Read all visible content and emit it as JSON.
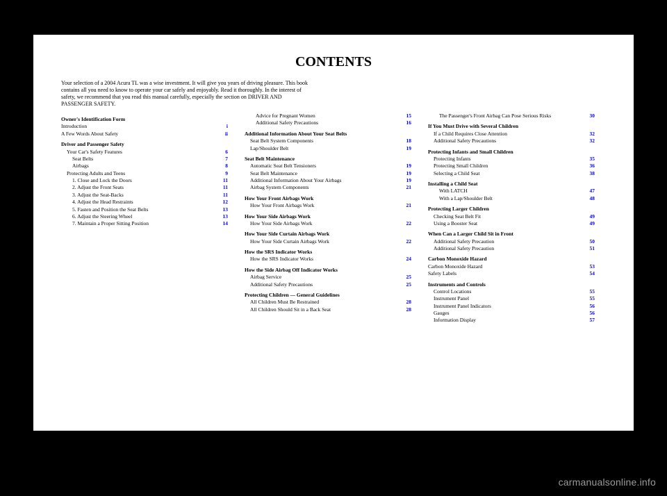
{
  "title": "CONTENTS",
  "intro": "Your selection of a 2004 Acura TL was a wise investment. It will give you years of driving pleasure. This book contains all you need to know to operate your car safely and enjoyably. Read it thoroughly. In the interest of safety, we recommend that you read this manual carefully, especially the section on DRIVER AND PASSENGER SAFETY.",
  "watermark": "carmanualsonline.info",
  "columns": [
    {
      "sections": [
        {
          "heading": "Owner's Identification Form",
          "items": [
            {
              "label": "Introduction",
              "page": "i",
              "indent": 0
            },
            {
              "label": "A Few Words About Safety",
              "page": "ii",
              "indent": 0
            }
          ]
        },
        {
          "heading": "Driver and Passenger Safety",
          "items": [
            {
              "label": "Your Car's Safety Features",
              "page": "6",
              "indent": 1
            },
            {
              "label": "Seat Belts",
              "page": "7",
              "indent": 2
            },
            {
              "label": "Airbags",
              "page": "8",
              "indent": 2
            },
            {
              "label": "Protecting Adults and Teens",
              "page": "9",
              "indent": 1
            },
            {
              "label": "1. Close and Lock the Doors",
              "page": "11",
              "indent": 2
            },
            {
              "label": "2. Adjust the Front Seats",
              "page": "11",
              "indent": 2
            },
            {
              "label": "3. Adjust the Seat-Backs",
              "page": "11",
              "indent": 2
            },
            {
              "label": "4. Adjust the Head Restraints",
              "page": "12",
              "indent": 2
            },
            {
              "label": "5. Fasten and Position the Seat Belts",
              "page": "13",
              "indent": 2
            },
            {
              "label": "6. Adjust the Steering Wheel",
              "page": "13",
              "indent": 2
            },
            {
              "label": "7. Maintain a Proper Sitting Position",
              "page": "14",
              "indent": 2
            }
          ]
        }
      ]
    },
    {
      "sections": [
        {
          "heading": "",
          "items": [
            {
              "label": "Advice for Pregnant Women",
              "page": "15",
              "indent": 2
            },
            {
              "label": "Additional Safety Precautions",
              "page": "16",
              "indent": 2
            }
          ]
        },
        {
          "heading": "Additional Information About Your Seat Belts",
          "items": [
            {
              "label": "Seat Belt System Components",
              "page": "18",
              "indent": 1
            },
            {
              "label": "Lap/Shoulder Belt",
              "page": "19",
              "indent": 1
            }
          ]
        },
        {
          "heading": "Seat Belt Maintenance",
          "items": [
            {
              "label": "Automatic Seat Belt Tensioners",
              "page": "19",
              "indent": 1
            },
            {
              "label": "Seat Belt Maintenance",
              "page": "19",
              "indent": 1
            },
            {
              "label": "Additional Information About Your Airbags",
              "page": "19",
              "indent": 1
            },
            {
              "label": "Airbag System Components",
              "page": "21",
              "indent": 1
            }
          ]
        },
        {
          "heading": "How Your Front Airbags Work",
          "items": [
            {
              "label": "How Your Front Airbags Work",
              "page": "21",
              "indent": 1
            }
          ]
        },
        {
          "heading": "How Your Side Airbags Work",
          "items": [
            {
              "label": "How Your Side Airbags Work",
              "page": "22",
              "indent": 1
            }
          ]
        },
        {
          "heading": "How Your Side Curtain Airbags Work",
          "items": [
            {
              "label": "How Your Side Curtain Airbags Work",
              "page": "22",
              "indent": 1
            }
          ]
        },
        {
          "heading": "How the SRS Indicator Works",
          "items": [
            {
              "label": "How the SRS Indicator Works",
              "page": "24",
              "indent": 1
            }
          ]
        },
        {
          "heading": "How the Side Airbag Off Indicator Works",
          "items": [
            {
              "label": "Airbag Service",
              "page": "25",
              "indent": 1
            },
            {
              "label": "Additional Safety Precautions",
              "page": "25",
              "indent": 1
            }
          ]
        },
        {
          "heading": "Protecting Children — General Guidelines",
          "items": [
            {
              "label": "All Children Must Be Restrained",
              "page": "28",
              "indent": 1
            },
            {
              "label": "All Children Should Sit in a Back Seat",
              "page": "28",
              "indent": 1
            }
          ]
        }
      ]
    },
    {
      "sections": [
        {
          "heading": "",
          "items": [
            {
              "label": "The Passenger's Front Airbag Can Pose Serious Risks",
              "page": "30",
              "indent": 2
            }
          ]
        },
        {
          "heading": "If You Must Drive with Several Children",
          "items": [
            {
              "label": "If a Child Requires Close Attention",
              "page": "32",
              "indent": 1
            },
            {
              "label": "Additional Safety Precautions",
              "page": "32",
              "indent": 1
            }
          ]
        },
        {
          "heading": "Protecting Infants and Small Children",
          "items": [
            {
              "label": "Protecting Infants",
              "page": "35",
              "indent": 1
            },
            {
              "label": "Protecting Small Children",
              "page": "36",
              "indent": 1
            },
            {
              "label": "Selecting a Child Seat",
              "page": "38",
              "indent": 1
            }
          ]
        },
        {
          "heading": "Installing a Child Seat",
          "items": [
            {
              "label": "With LATCH",
              "page": "47",
              "indent": 2
            },
            {
              "label": "With a Lap/Shoulder Belt",
              "page": "48",
              "indent": 2
            }
          ]
        },
        {
          "heading": "Protecting Larger Children",
          "items": [
            {
              "label": "Checking Seat Belt Fit",
              "page": "49",
              "indent": 1
            },
            {
              "label": "Using a Booster Seat",
              "page": "49",
              "indent": 1
            }
          ]
        },
        {
          "heading": "When Can a Larger Child Sit in Front",
          "items": [
            {
              "label": "Additional Safety Precaution",
              "page": "50",
              "indent": 1
            },
            {
              "label": "Additional Safety Precaution",
              "page": "51",
              "indent": 1
            }
          ]
        },
        {
          "heading": "Carbon Monoxide Hazard",
          "items": [
            {
              "label": "Carbon Monoxide Hazard",
              "page": "53",
              "indent": 0
            },
            {
              "label": "Safety Labels",
              "page": "54",
              "indent": 0
            }
          ]
        },
        {
          "heading": "Instruments and Controls",
          "items": [
            {
              "label": "Control Locations",
              "page": "55",
              "indent": 1
            },
            {
              "label": "Instrument Panel",
              "page": "55",
              "indent": 1
            },
            {
              "label": "Instrument Panel Indicators",
              "page": "56",
              "indent": 1
            },
            {
              "label": "Gauges",
              "page": "56",
              "indent": 1
            },
            {
              "label": "Information Display",
              "page": "57",
              "indent": 1
            }
          ]
        }
      ]
    }
  ]
}
